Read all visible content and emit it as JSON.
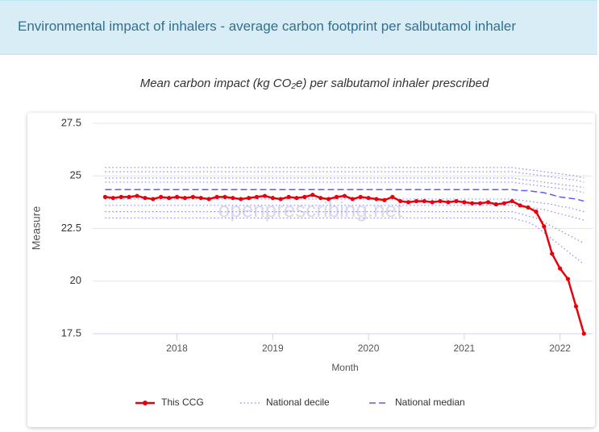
{
  "header": {
    "title": "Environmental impact of inhalers - average carbon footprint per salbutamol inhaler"
  },
  "chart_data": {
    "type": "line",
    "title": "Mean carbon impact (kg CO₂e) per salbutamol inhaler prescribed",
    "watermark": "openprescribing.net",
    "x_label": "Month",
    "y_label": "Measure",
    "xlim": [
      2017.12,
      2022.34
    ],
    "xticks": [
      2018,
      2019,
      2020,
      2021,
      2022
    ],
    "ylim": [
      17.5,
      27.5
    ],
    "yticks": [
      17.5,
      20,
      22.5,
      25,
      27.5
    ],
    "grid": true,
    "x": [
      2017.25,
      2017.333,
      2017.417,
      2017.5,
      2017.583,
      2017.667,
      2017.75,
      2017.833,
      2017.917,
      2018,
      2018.083,
      2018.167,
      2018.25,
      2018.333,
      2018.417,
      2018.5,
      2018.583,
      2018.667,
      2018.75,
      2018.833,
      2018.917,
      2019,
      2019.083,
      2019.167,
      2019.25,
      2019.333,
      2019.417,
      2019.5,
      2019.583,
      2019.667,
      2019.75,
      2019.833,
      2019.917,
      2020,
      2020.083,
      2020.167,
      2020.25,
      2020.333,
      2020.417,
      2020.5,
      2020.583,
      2020.667,
      2020.75,
      2020.833,
      2020.917,
      2021,
      2021.083,
      2021.167,
      2021.25,
      2021.333,
      2021.417,
      2021.5,
      2021.583,
      2021.667,
      2021.75,
      2021.833,
      2021.917,
      2022,
      2022.083,
      2022.167,
      2022.25
    ],
    "series": [
      {
        "name": "National decile",
        "color": "#8888ff",
        "style": "dotted",
        "values": [
          25.4,
          25.4,
          25.4,
          25.4,
          25.4,
          25.4,
          25.4,
          25.4,
          25.4,
          25.4,
          25.4,
          25.4,
          25.4,
          25.4,
          25.4,
          25.4,
          25.4,
          25.4,
          25.4,
          25.4,
          25.4,
          25.4,
          25.4,
          25.4,
          25.4,
          25.4,
          25.4,
          25.4,
          25.4,
          25.4,
          25.4,
          25.4,
          25.4,
          25.4,
          25.4,
          25.4,
          25.4,
          25.4,
          25.4,
          25.4,
          25.4,
          25.4,
          25.4,
          25.4,
          25.4,
          25.4,
          25.4,
          25.4,
          25.4,
          25.4,
          25.4,
          25.4,
          25.35,
          25.3,
          25.25,
          25.2,
          25.15,
          25.1,
          25.05,
          25.0,
          24.9
        ]
      },
      {
        "name": "National decile",
        "color": "#8888ff",
        "style": "dotted",
        "values": [
          25.2,
          25.2,
          25.2,
          25.2,
          25.2,
          25.2,
          25.2,
          25.2,
          25.2,
          25.2,
          25.2,
          25.2,
          25.2,
          25.2,
          25.2,
          25.2,
          25.2,
          25.2,
          25.2,
          25.2,
          25.2,
          25.2,
          25.2,
          25.2,
          25.2,
          25.2,
          25.2,
          25.2,
          25.2,
          25.2,
          25.2,
          25.2,
          25.2,
          25.2,
          25.2,
          25.2,
          25.2,
          25.2,
          25.2,
          25.2,
          25.2,
          25.2,
          25.2,
          25.2,
          25.2,
          25.2,
          25.2,
          25.2,
          25.2,
          25.2,
          25.2,
          25.2,
          25.15,
          25.1,
          25.05,
          25.0,
          24.95,
          24.9,
          24.85,
          24.8,
          24.7
        ]
      },
      {
        "name": "National decile",
        "color": "#8888ff",
        "style": "dotted",
        "values": [
          24.9,
          24.9,
          24.9,
          24.9,
          24.9,
          24.9,
          24.9,
          24.9,
          24.9,
          24.9,
          24.9,
          24.9,
          24.9,
          24.9,
          24.9,
          24.9,
          24.9,
          24.9,
          24.9,
          24.9,
          24.9,
          24.9,
          24.9,
          24.9,
          24.9,
          24.9,
          24.9,
          24.9,
          24.9,
          24.9,
          24.9,
          24.9,
          24.9,
          24.9,
          24.9,
          24.9,
          24.9,
          24.9,
          24.9,
          24.9,
          24.9,
          24.9,
          24.9,
          24.9,
          24.9,
          24.9,
          24.9,
          24.9,
          24.9,
          24.9,
          24.9,
          24.9,
          24.85,
          24.8,
          24.75,
          24.7,
          24.65,
          24.6,
          24.55,
          24.5,
          24.45
        ]
      },
      {
        "name": "National decile",
        "color": "#8888ff",
        "style": "dotted",
        "values": [
          24.7,
          24.7,
          24.7,
          24.7,
          24.7,
          24.7,
          24.7,
          24.7,
          24.7,
          24.7,
          24.7,
          24.7,
          24.7,
          24.7,
          24.7,
          24.7,
          24.7,
          24.7,
          24.7,
          24.7,
          24.7,
          24.7,
          24.7,
          24.7,
          24.7,
          24.7,
          24.7,
          24.7,
          24.7,
          24.7,
          24.7,
          24.7,
          24.7,
          24.7,
          24.7,
          24.7,
          24.7,
          24.7,
          24.7,
          24.7,
          24.7,
          24.7,
          24.7,
          24.7,
          24.7,
          24.7,
          24.7,
          24.7,
          24.7,
          24.7,
          24.7,
          24.7,
          24.65,
          24.6,
          24.55,
          24.5,
          24.45,
          24.4,
          24.35,
          24.3,
          24.2
        ]
      },
      {
        "name": "National decile",
        "color": "#8888ff",
        "style": "dotted",
        "values": [
          23.9,
          23.9,
          23.9,
          23.9,
          23.9,
          23.9,
          23.9,
          23.9,
          23.9,
          23.9,
          23.9,
          23.9,
          23.9,
          23.9,
          23.9,
          23.9,
          23.9,
          23.9,
          23.9,
          23.9,
          23.9,
          23.9,
          23.9,
          23.9,
          23.9,
          23.9,
          23.9,
          23.9,
          23.9,
          23.9,
          23.9,
          23.9,
          23.9,
          23.9,
          23.9,
          23.9,
          23.9,
          23.9,
          23.9,
          23.9,
          23.9,
          23.9,
          23.9,
          23.9,
          23.9,
          23.9,
          23.9,
          23.9,
          23.9,
          23.9,
          23.9,
          23.9,
          23.85,
          23.8,
          23.75,
          23.7,
          23.65,
          23.55,
          23.5,
          23.4,
          23.3
        ]
      },
      {
        "name": "National decile",
        "color": "#8888ff",
        "style": "dotted",
        "values": [
          23.6,
          23.6,
          23.6,
          23.6,
          23.6,
          23.6,
          23.6,
          23.6,
          23.6,
          23.6,
          23.6,
          23.6,
          23.6,
          23.6,
          23.6,
          23.6,
          23.6,
          23.6,
          23.6,
          23.6,
          23.6,
          23.6,
          23.6,
          23.6,
          23.6,
          23.6,
          23.6,
          23.6,
          23.6,
          23.6,
          23.6,
          23.6,
          23.6,
          23.6,
          23.6,
          23.6,
          23.6,
          23.6,
          23.6,
          23.6,
          23.6,
          23.6,
          23.6,
          23.6,
          23.6,
          23.6,
          23.6,
          23.6,
          23.6,
          23.6,
          23.6,
          23.6,
          23.55,
          23.5,
          23.45,
          23.4,
          23.3,
          23.2,
          23.1,
          23.0,
          22.9
        ]
      },
      {
        "name": "National decile",
        "color": "#8888ff",
        "style": "dotted",
        "values": [
          23.3,
          23.3,
          23.3,
          23.3,
          23.3,
          23.3,
          23.3,
          23.3,
          23.3,
          23.3,
          23.3,
          23.3,
          23.3,
          23.3,
          23.3,
          23.3,
          23.3,
          23.3,
          23.3,
          23.3,
          23.3,
          23.3,
          23.3,
          23.3,
          23.3,
          23.3,
          23.3,
          23.3,
          23.3,
          23.3,
          23.3,
          23.3,
          23.3,
          23.3,
          23.3,
          23.3,
          23.3,
          23.3,
          23.3,
          23.3,
          23.3,
          23.3,
          23.3,
          23.3,
          23.3,
          23.3,
          23.3,
          23.3,
          23.3,
          23.3,
          23.3,
          23.3,
          23.2,
          23.1,
          23.0,
          22.8,
          22.6,
          22.4,
          22.2,
          22.0,
          21.8
        ]
      },
      {
        "name": "National decile",
        "color": "#8888ff",
        "style": "dotted",
        "values": [
          23.0,
          23.0,
          23.0,
          23.0,
          23.0,
          23.0,
          23.0,
          23.0,
          23.0,
          23.0,
          23.0,
          23.0,
          23.0,
          23.0,
          23.0,
          23.0,
          23.0,
          23.0,
          23.0,
          23.0,
          23.0,
          23.0,
          23.0,
          23.0,
          23.0,
          23.0,
          23.0,
          23.0,
          23.0,
          23.0,
          23.0,
          23.0,
          23.0,
          23.0,
          23.0,
          23.0,
          23.0,
          23.0,
          23.0,
          23.0,
          23.0,
          23.0,
          23.0,
          23.0,
          23.0,
          23.0,
          23.0,
          23.0,
          23.0,
          23.0,
          23.0,
          23.0,
          22.9,
          22.8,
          22.6,
          22.3,
          22.0,
          21.7,
          21.4,
          21.1,
          20.8
        ]
      },
      {
        "name": "National median",
        "color": "#5c5cff",
        "style": "dashed",
        "values": [
          24.35,
          24.35,
          24.35,
          24.35,
          24.35,
          24.35,
          24.35,
          24.35,
          24.35,
          24.35,
          24.35,
          24.35,
          24.35,
          24.35,
          24.35,
          24.35,
          24.35,
          24.35,
          24.35,
          24.35,
          24.35,
          24.35,
          24.35,
          24.35,
          24.35,
          24.35,
          24.35,
          24.35,
          24.35,
          24.35,
          24.35,
          24.35,
          24.35,
          24.35,
          24.35,
          24.35,
          24.35,
          24.35,
          24.35,
          24.35,
          24.35,
          24.35,
          24.35,
          24.35,
          24.35,
          24.35,
          24.35,
          24.35,
          24.35,
          24.35,
          24.35,
          24.35,
          24.3,
          24.3,
          24.25,
          24.2,
          24.1,
          24.0,
          23.95,
          23.9,
          23.8
        ]
      },
      {
        "name": "This CCG",
        "color": "#e8000b",
        "style": "solid",
        "markers": true,
        "values": [
          24.0,
          23.95,
          24.0,
          24.0,
          24.05,
          23.95,
          23.9,
          24.0,
          23.95,
          24.0,
          23.95,
          24.0,
          23.95,
          23.9,
          24.0,
          24.0,
          23.95,
          23.9,
          23.95,
          24.0,
          24.05,
          23.95,
          23.9,
          24.0,
          23.95,
          24.0,
          24.1,
          23.95,
          23.9,
          24.0,
          24.05,
          23.9,
          24.0,
          23.95,
          23.9,
          23.85,
          24.0,
          23.8,
          23.75,
          23.8,
          23.8,
          23.75,
          23.8,
          23.75,
          23.8,
          23.75,
          23.7,
          23.7,
          23.75,
          23.65,
          23.7,
          23.8,
          23.6,
          23.5,
          23.3,
          22.6,
          21.3,
          20.6,
          20.1,
          18.8,
          17.5
        ]
      }
    ]
  }
}
